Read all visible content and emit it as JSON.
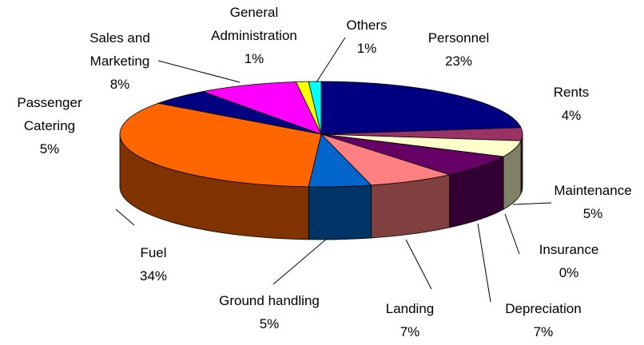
{
  "chart_data": {
    "type": "pie3d",
    "categories": [
      "Personnel",
      "Rents",
      "Maintenance",
      "Insurance",
      "Depreciation",
      "Landing",
      "Ground handling",
      "Fuel",
      "Passenger Catering",
      "Sales and Marketing",
      "General Administration",
      "Others"
    ],
    "values": [
      23,
      4,
      5,
      0,
      7,
      7,
      5,
      34,
      5,
      8,
      1,
      1
    ],
    "value_labels": [
      "23%",
      "4%",
      "5%",
      "0%",
      "7%",
      "7%",
      "5%",
      "34%",
      "5%",
      "8%",
      "1%",
      "1%"
    ],
    "colors": [
      "#000080",
      "#993366",
      "#FFFFCC",
      "#CCFFFF",
      "#660066",
      "#FF8080",
      "#0066CC",
      "#FF6600",
      "#000080",
      "#FF00FF",
      "#FFFF00",
      "#00FFFF"
    ]
  }
}
